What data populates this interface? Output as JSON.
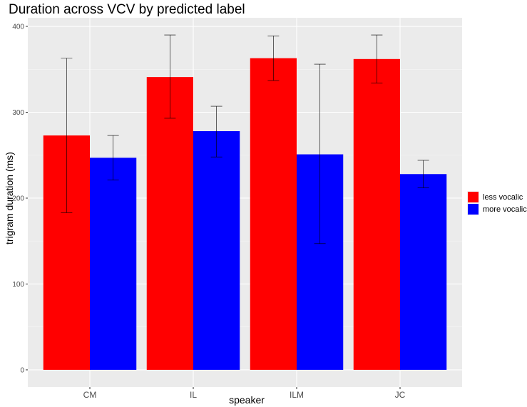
{
  "chart_data": {
    "type": "bar",
    "title": "Duration across VCV by predicted label",
    "xlabel": "speaker",
    "ylabel": "trigram duration (ms)",
    "categories": [
      "CM",
      "IL",
      "ILM",
      "JC"
    ],
    "yticks": [
      "0",
      "100",
      "200",
      "300",
      "400"
    ],
    "ylim": [
      -20,
      410
    ],
    "grid": true,
    "legend_position": "right",
    "series": [
      {
        "name": "less vocalic",
        "color": "#ff0000",
        "values": [
          273,
          341,
          363,
          362
        ],
        "error_low": [
          183,
          293,
          337,
          334
        ],
        "error_high": [
          363,
          390,
          389,
          390
        ]
      },
      {
        "name": "more vocalic",
        "color": "#0000ff",
        "values": [
          247,
          278,
          251,
          228
        ],
        "error_low": [
          221,
          248,
          147,
          212
        ],
        "error_high": [
          273,
          307,
          356,
          244
        ]
      }
    ]
  }
}
